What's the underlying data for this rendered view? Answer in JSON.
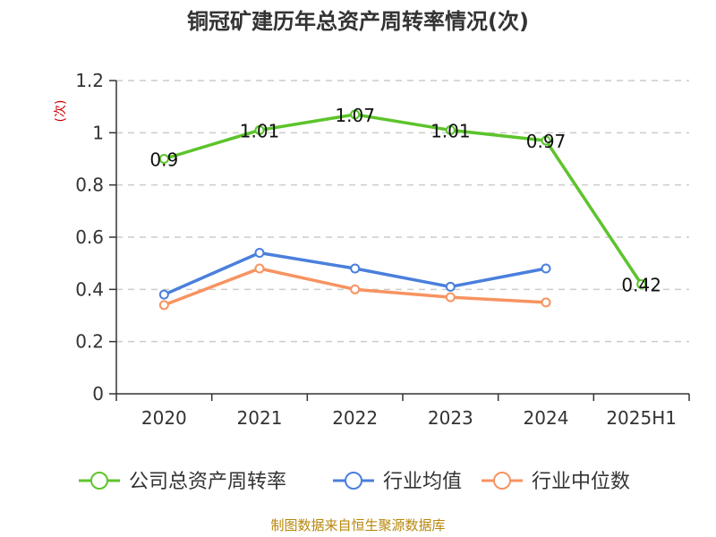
{
  "chart_data": {
    "type": "line",
    "title": "铜冠矿建历年总资产周转率情况(次)",
    "ylabel": "(次)",
    "categories": [
      "2020",
      "2021",
      "2022",
      "2023",
      "2024",
      "2025H1"
    ],
    "ylim": [
      0,
      1.2
    ],
    "yticks": [
      "0",
      "0.2",
      "0.4",
      "0.6",
      "0.8",
      "1",
      "1.2"
    ],
    "grid": true,
    "legend": "bottom",
    "series": [
      {
        "name": "公司总资产周转率",
        "color": "#5cc42b",
        "values": [
          0.9,
          1.01,
          1.07,
          1.01,
          0.97,
          0.42
        ],
        "labels": [
          "0.9",
          "1.01",
          "1.07",
          "1.01",
          "0.97",
          "0.42"
        ]
      },
      {
        "name": "行业均值",
        "color": "#4a7fdc",
        "values": [
          0.38,
          0.54,
          0.48,
          0.41,
          0.48,
          null
        ]
      },
      {
        "name": "行业中位数",
        "color": "#f79361",
        "values": [
          0.34,
          0.48,
          0.4,
          0.37,
          0.35,
          null
        ]
      }
    ]
  },
  "source": "制图数据来自恒生聚源数据库"
}
